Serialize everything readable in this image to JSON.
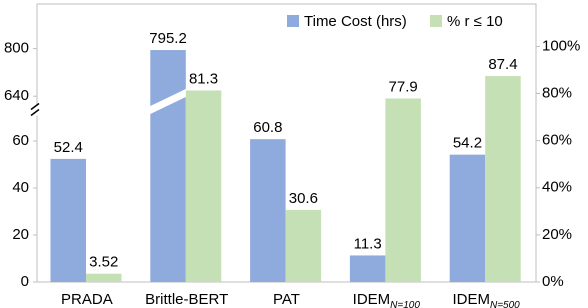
{
  "chart_data": {
    "type": "bar",
    "categories": [
      "PRADA",
      "Brittle-BERT",
      "PAT",
      "IDEM",
      "IDEM"
    ],
    "category_subscripts": [
      null,
      null,
      null,
      "N=100",
      "N=500"
    ],
    "series": [
      {
        "name": "Time Cost (hrs)",
        "color": "#8faadc",
        "values": [
          52.4,
          795.2,
          60.8,
          11.3,
          54.2
        ]
      },
      {
        "name": "% r ≤ 10",
        "color": "#c5e0b4",
        "axis": "y2",
        "values": [
          3.52,
          81.3,
          30.6,
          77.9,
          87.4
        ]
      }
    ],
    "ylim": [
      0,
      950
    ],
    "y_break": [
      73,
      592
    ],
    "yticks": [
      0,
      20,
      40,
      60,
      640,
      800
    ],
    "y2lim": [
      0,
      118
    ],
    "y2ticks": [
      {
        "value": 0,
        "label": "0%"
      },
      {
        "value": 20,
        "label": "20%"
      },
      {
        "value": 40,
        "label": "40%"
      },
      {
        "value": 60,
        "label": "60%"
      },
      {
        "value": 80,
        "label": "80%"
      },
      {
        "value": 100,
        "label": "100%"
      }
    ],
    "legend": "top-right"
  }
}
